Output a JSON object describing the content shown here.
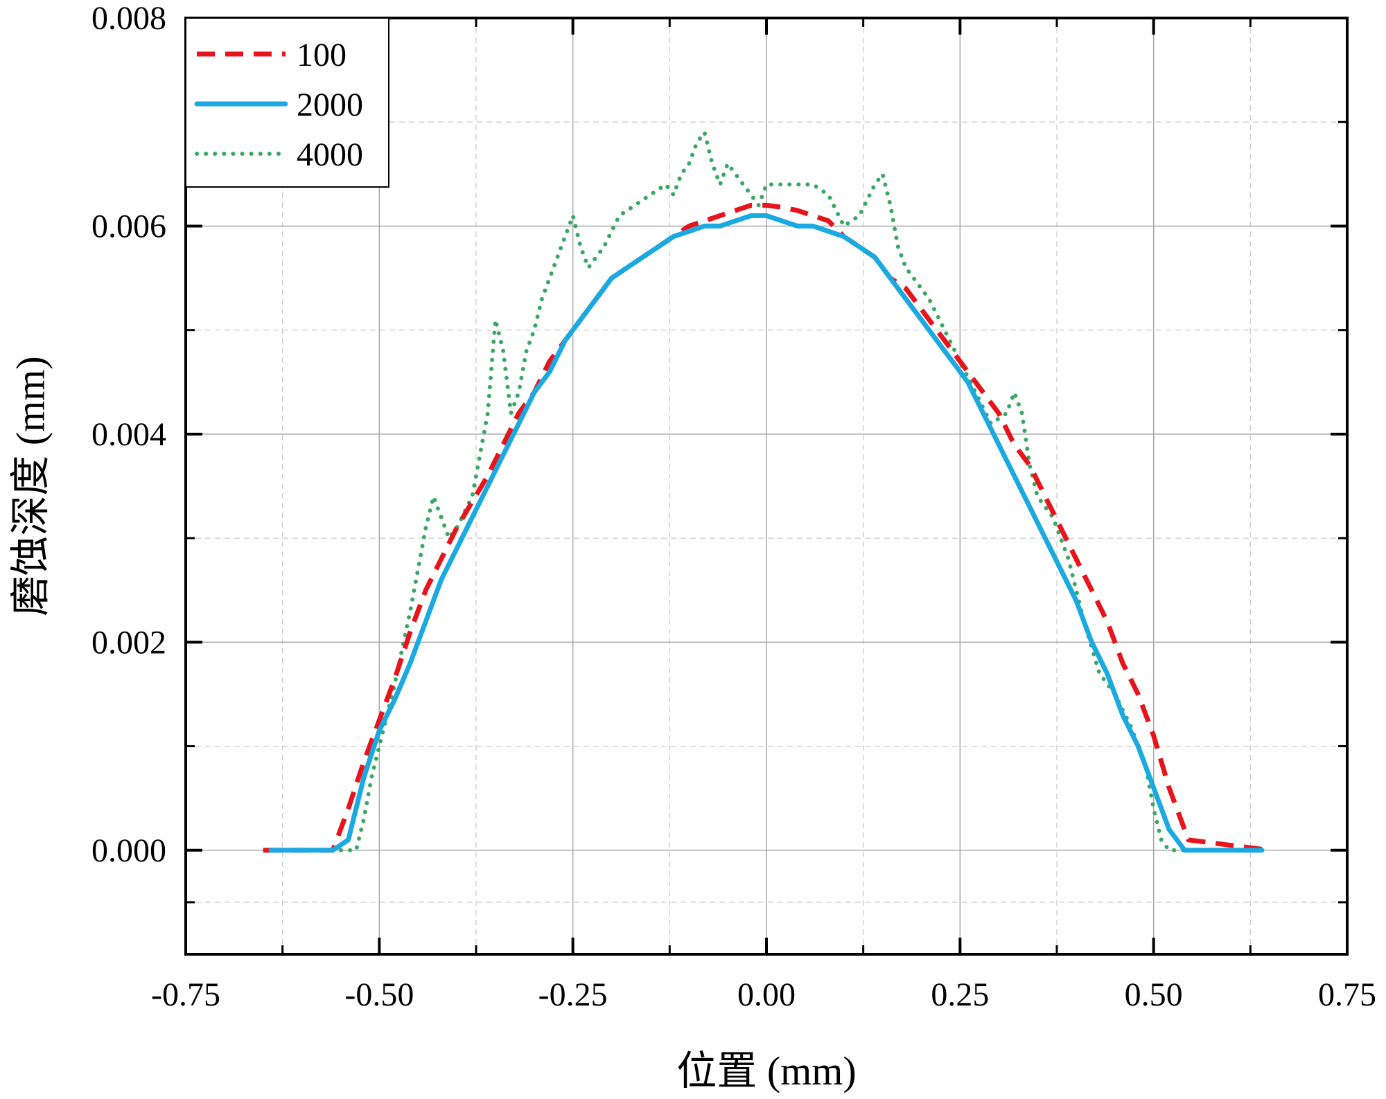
{
  "chart_data": {
    "type": "line",
    "title": "",
    "xlabel": "位置 (mm)",
    "ylabel": "磨蚀深度 (mm)",
    "xlim": [
      -0.75,
      0.75
    ],
    "ylim": [
      -0.001,
      0.008
    ],
    "x_ticks": [
      -0.75,
      -0.5,
      -0.25,
      0.0,
      0.25,
      0.5,
      0.75
    ],
    "x_tick_labels": [
      "-0.75",
      "-0.50",
      "-0.25",
      "0.00",
      "0.25",
      "0.50",
      "0.75"
    ],
    "y_ticks": [
      0.0,
      0.002,
      0.004,
      0.006,
      0.008
    ],
    "y_tick_labels": [
      "0.000",
      "0.002",
      "0.004",
      "0.006",
      "0.008"
    ],
    "grid": true,
    "legend_position": "top-left",
    "series": [
      {
        "name": "100",
        "color": "#e8141b",
        "style": "dashed",
        "x": [
          -0.65,
          -0.56,
          -0.54,
          -0.52,
          -0.5,
          -0.48,
          -0.46,
          -0.44,
          -0.42,
          -0.4,
          -0.38,
          -0.36,
          -0.34,
          -0.32,
          -0.3,
          -0.28,
          -0.26,
          -0.24,
          -0.22,
          -0.2,
          -0.18,
          -0.16,
          -0.14,
          -0.12,
          -0.1,
          -0.08,
          -0.06,
          -0.04,
          -0.02,
          0.0,
          0.02,
          0.04,
          0.06,
          0.08,
          0.1,
          0.12,
          0.14,
          0.16,
          0.18,
          0.2,
          0.22,
          0.24,
          0.26,
          0.28,
          0.3,
          0.32,
          0.34,
          0.36,
          0.38,
          0.4,
          0.42,
          0.44,
          0.46,
          0.48,
          0.5,
          0.52,
          0.545,
          0.65
        ],
        "y": [
          0.0,
          0.0,
          0.0004,
          0.00085,
          0.00125,
          0.00165,
          0.0021,
          0.0025,
          0.0028,
          0.0031,
          0.00335,
          0.0036,
          0.0039,
          0.0042,
          0.0044,
          0.0047,
          0.0049,
          0.0051,
          0.0053,
          0.0055,
          0.0056,
          0.0057,
          0.0058,
          0.0059,
          0.006,
          0.00605,
          0.0061,
          0.00615,
          0.0062,
          0.0062,
          0.00618,
          0.00615,
          0.0061,
          0.00605,
          0.0059,
          0.0058,
          0.0057,
          0.0055,
          0.0054,
          0.0052,
          0.005,
          0.0048,
          0.0046,
          0.0044,
          0.0042,
          0.0039,
          0.0037,
          0.0034,
          0.0031,
          0.0028,
          0.0025,
          0.0022,
          0.0018,
          0.0015,
          0.0011,
          0.0006,
          0.0001,
          0.0
        ]
      },
      {
        "name": "2000",
        "color": "#1ba9e1",
        "style": "solid",
        "x": [
          -0.64,
          -0.56,
          -0.54,
          -0.52,
          -0.5,
          -0.48,
          -0.46,
          -0.44,
          -0.42,
          -0.4,
          -0.38,
          -0.36,
          -0.34,
          -0.32,
          -0.3,
          -0.28,
          -0.26,
          -0.24,
          -0.22,
          -0.2,
          -0.18,
          -0.16,
          -0.14,
          -0.12,
          -0.1,
          -0.08,
          -0.06,
          -0.04,
          -0.02,
          0.0,
          0.02,
          0.04,
          0.06,
          0.08,
          0.1,
          0.12,
          0.14,
          0.16,
          0.18,
          0.2,
          0.22,
          0.24,
          0.26,
          0.28,
          0.3,
          0.32,
          0.34,
          0.36,
          0.38,
          0.4,
          0.42,
          0.44,
          0.46,
          0.48,
          0.5,
          0.52,
          0.54,
          0.64
        ],
        "y": [
          0.0,
          0.0,
          0.0001,
          0.0007,
          0.00115,
          0.00145,
          0.0018,
          0.0022,
          0.0026,
          0.0029,
          0.0032,
          0.0035,
          0.0038,
          0.0041,
          0.0044,
          0.0046,
          0.0049,
          0.0051,
          0.0053,
          0.0055,
          0.0056,
          0.0057,
          0.0058,
          0.0059,
          0.00595,
          0.006,
          0.006,
          0.00605,
          0.0061,
          0.0061,
          0.00605,
          0.006,
          0.006,
          0.00595,
          0.0059,
          0.0058,
          0.0057,
          0.0055,
          0.0053,
          0.0051,
          0.0049,
          0.0047,
          0.0045,
          0.0042,
          0.0039,
          0.0036,
          0.0033,
          0.003,
          0.0027,
          0.0024,
          0.002,
          0.0017,
          0.0013,
          0.001,
          0.0006,
          0.0002,
          0.0,
          0.0
        ]
      },
      {
        "name": "4000",
        "color": "#3aa864",
        "style": "dotted",
        "x": [
          -0.62,
          -0.54,
          -0.53,
          -0.52,
          -0.51,
          -0.5,
          -0.48,
          -0.46,
          -0.44,
          -0.43,
          -0.42,
          -0.41,
          -0.4,
          -0.38,
          -0.36,
          -0.35,
          -0.34,
          -0.33,
          -0.32,
          -0.31,
          -0.3,
          -0.29,
          -0.27,
          -0.25,
          -0.24,
          -0.23,
          -0.21,
          -0.19,
          -0.17,
          -0.15,
          -0.13,
          -0.12,
          -0.11,
          -0.1,
          -0.09,
          -0.08,
          -0.07,
          -0.06,
          -0.05,
          -0.04,
          -0.03,
          -0.02,
          -0.01,
          0.0,
          0.02,
          0.04,
          0.06,
          0.08,
          0.1,
          0.12,
          0.14,
          0.15,
          0.16,
          0.17,
          0.18,
          0.19,
          0.21,
          0.23,
          0.25,
          0.27,
          0.29,
          0.31,
          0.32,
          0.33,
          0.34,
          0.35,
          0.37,
          0.39,
          0.41,
          0.43,
          0.45,
          0.47,
          0.49,
          0.5,
          0.51,
          0.52,
          0.54,
          0.62
        ],
        "y": [
          0.0,
          0.0,
          0.0,
          0.0003,
          0.0007,
          0.001,
          0.0016,
          0.0023,
          0.0031,
          0.0034,
          0.0032,
          0.003,
          0.0031,
          0.0034,
          0.0042,
          0.0051,
          0.0048,
          0.0042,
          0.0044,
          0.0048,
          0.005,
          0.0053,
          0.0057,
          0.0061,
          0.0058,
          0.0056,
          0.0058,
          0.0061,
          0.0062,
          0.0063,
          0.0064,
          0.0063,
          0.0065,
          0.0066,
          0.0068,
          0.0069,
          0.0066,
          0.0064,
          0.0066,
          0.0065,
          0.0064,
          0.0063,
          0.0062,
          0.0064,
          0.0064,
          0.0064,
          0.0064,
          0.0063,
          0.006,
          0.0061,
          0.0064,
          0.0065,
          0.0062,
          0.0058,
          0.0056,
          0.0055,
          0.0053,
          0.005,
          0.0047,
          0.0044,
          0.0041,
          0.0042,
          0.0044,
          0.0042,
          0.0037,
          0.0034,
          0.0032,
          0.0028,
          0.0022,
          0.0017,
          0.0015,
          0.0012,
          0.0008,
          0.0004,
          0.0001,
          0.0,
          0.0,
          0.0
        ]
      }
    ]
  }
}
